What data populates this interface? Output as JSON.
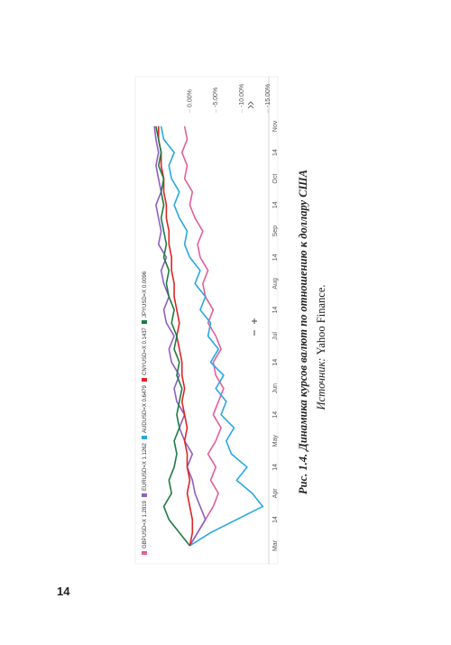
{
  "chart_data": {
    "type": "line",
    "categories": [
      "Mar",
      null,
      "14",
      null,
      "Apr",
      null,
      "14",
      null,
      "May",
      null,
      "14",
      null,
      "Jun",
      null,
      "14",
      null,
      "Jul",
      null,
      "14",
      null,
      "Aug",
      null,
      "14",
      null,
      "Sep",
      null,
      "14",
      null,
      "Oct",
      null,
      "14",
      null,
      "Nov"
    ],
    "series": [
      {
        "name": "GBPUSD=X",
        "quote": "1.2819",
        "color": "#e0609a",
        "values": [
          0,
          -1.5,
          -3,
          -4.5,
          -5.5,
          -4,
          -5,
          -3.5,
          -5,
          -6,
          -4.5,
          -5.5,
          -6.5,
          -5,
          -4.5,
          -6,
          -5,
          -3.5,
          -4.5,
          -3,
          -2.5,
          -3.5,
          -2,
          -1.5,
          -2.5,
          -1,
          0,
          -0.5,
          1,
          0.5,
          1.5,
          0.5,
          1
        ]
      },
      {
        "name": "EURUSD=X",
        "quote": "1.1262",
        "color": "#8e5fc4",
        "values": [
          0,
          -1.5,
          -3,
          -2,
          -1,
          -0.5,
          0.5,
          -0.5,
          1,
          2,
          1,
          2.5,
          3,
          2,
          3.5,
          4,
          3,
          4.5,
          5,
          4,
          5,
          5.5,
          4.5,
          6,
          5.5,
          6,
          6.5,
          5.5,
          6,
          6.5,
          6,
          6.5,
          6.8
        ]
      },
      {
        "name": "AUDUSD=X",
        "quote": "0.6479",
        "color": "#2aa7e0",
        "values": [
          0,
          -4,
          -9,
          -14,
          -12,
          -9,
          -11,
          -8,
          -7,
          -8.5,
          -6,
          -7,
          -5,
          -6.5,
          -4,
          -5.5,
          -3.5,
          -4,
          -2,
          -3,
          -1,
          -2,
          0,
          1,
          0.5,
          2,
          3,
          2,
          3.5,
          4,
          3,
          5,
          5.5
        ]
      },
      {
        "name": "CNYUSD=X",
        "quote": "0.1437",
        "color": "#e02424",
        "values": [
          0,
          -0.5,
          -0.5,
          0,
          0.5,
          0,
          0.5,
          0.5,
          1,
          0.5,
          1,
          1.5,
          1,
          1.5,
          1.5,
          2,
          2.5,
          2,
          2.5,
          3,
          3,
          3.5,
          3.5,
          4,
          4,
          4.5,
          4.5,
          5,
          5,
          5.5,
          5.5,
          6,
          6
        ]
      },
      {
        "name": "JPYUSD=X",
        "quote": "0.0096",
        "color": "#1f7a45",
        "values": [
          0,
          2,
          4,
          5,
          3.5,
          4,
          3,
          2.5,
          3,
          2,
          2.5,
          2,
          1.5,
          2.5,
          2,
          3,
          2.5,
          3.5,
          3,
          4,
          4.5,
          4,
          5,
          4.5,
          5,
          5.5,
          5,
          5.5,
          5,
          6,
          5.5,
          6,
          6.5
        ]
      }
    ],
    "ylim": [
      -15,
      7
    ],
    "yticks": [
      {
        "value": 0,
        "label": "0.00%"
      },
      {
        "value": -5,
        "label": "-5.00%"
      },
      {
        "value": -10,
        "label": "-10.00%"
      },
      {
        "value": -15,
        "label": "-15.00%"
      }
    ],
    "grid": false
  },
  "caption": {
    "title": "Рис. 1.4. Динамика курсов валют по отношению к доллару США",
    "source_label": "Источник:",
    "source": "Yahoo Finance."
  },
  "page_number": "14"
}
